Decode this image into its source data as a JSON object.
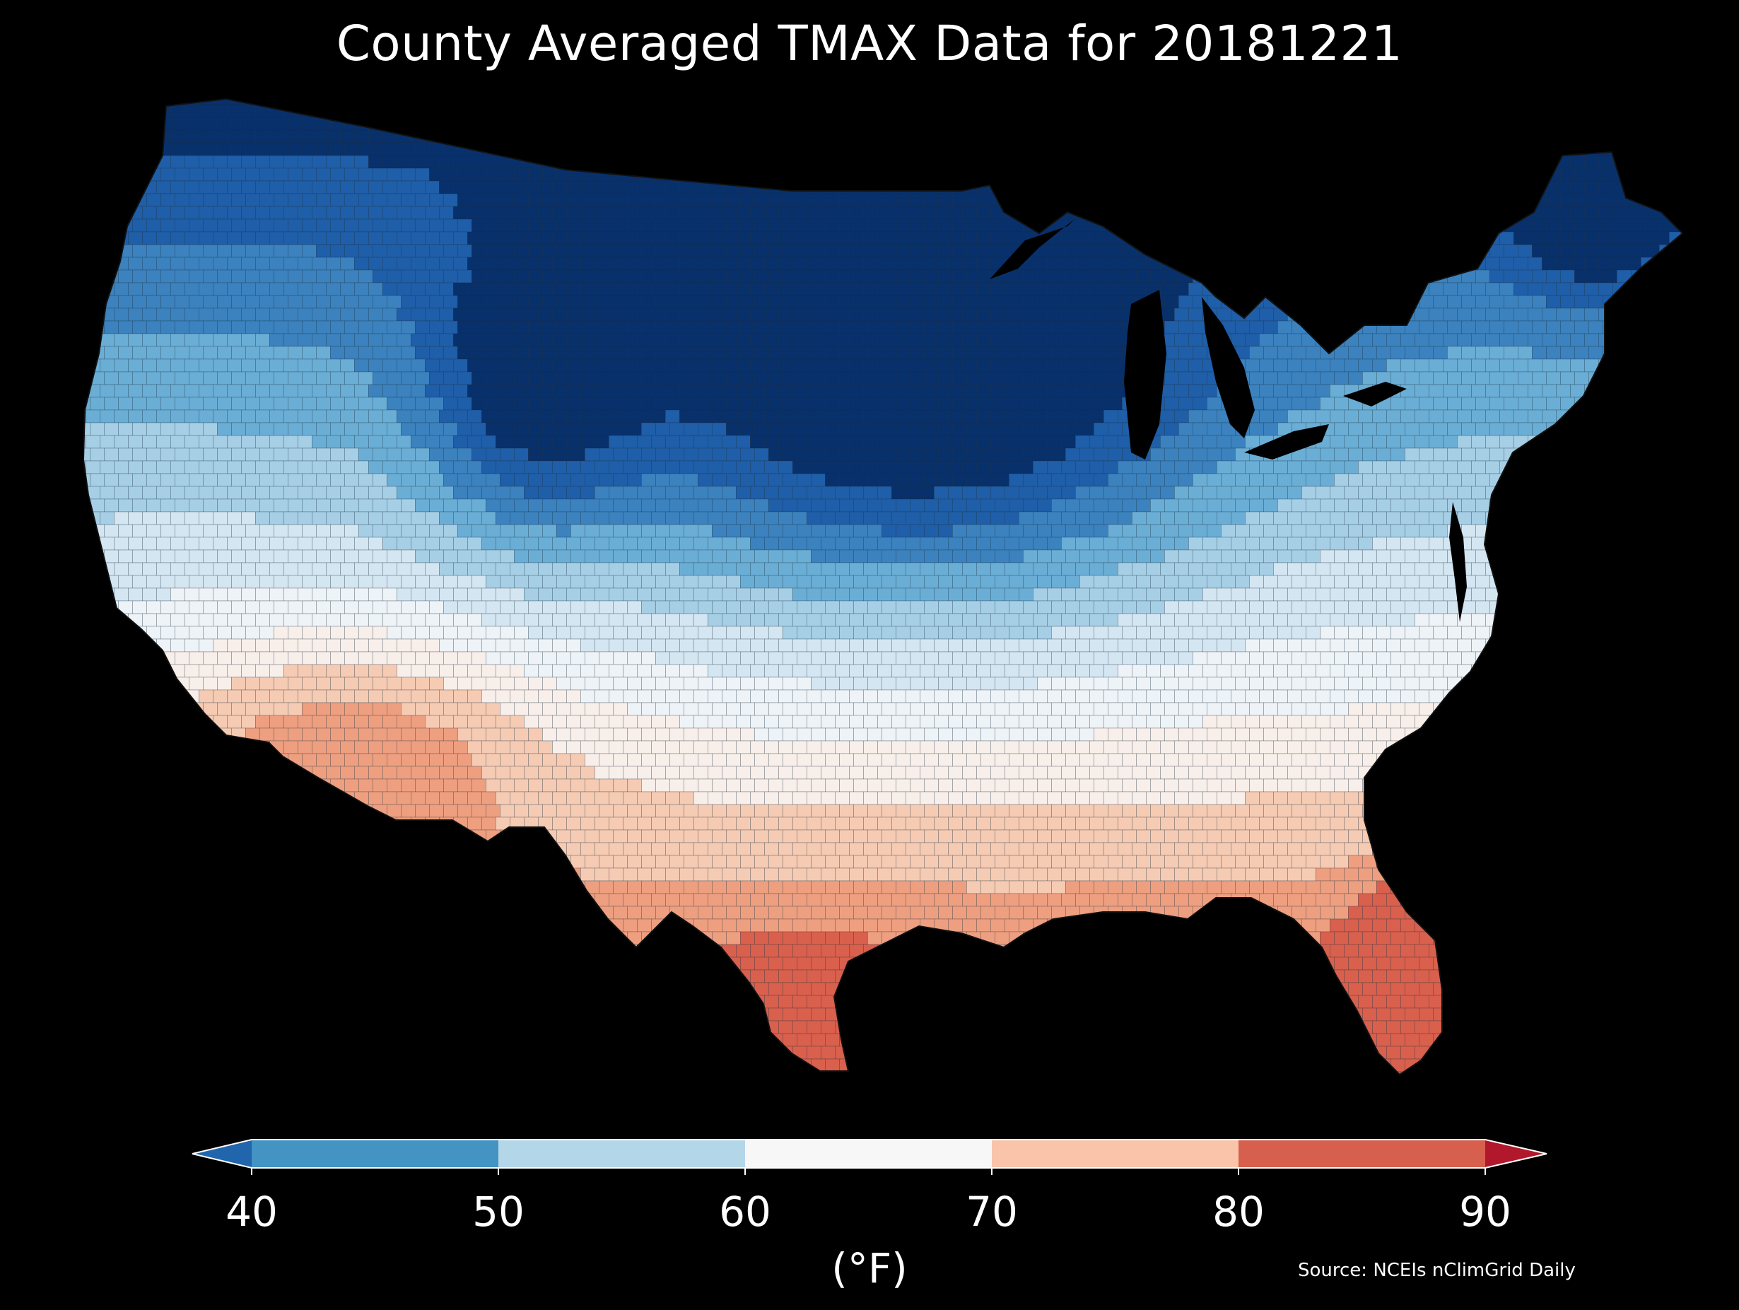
{
  "title": "County Averaged TMAX Data for 20181221",
  "colorbar": {
    "ticks": [
      "40",
      "50",
      "60",
      "70",
      "80",
      "90"
    ],
    "units": "(°F)",
    "colors": {
      "under": "#2166ac",
      "bins": [
        "#4393c3",
        "#b4d6e9",
        "#f7f7f7",
        "#f9c4a9",
        "#d6604d"
      ],
      "over": "#b2182b"
    }
  },
  "source": "Source: NCEIs nClimGrid Daily",
  "map": {
    "background": "#000000",
    "ramp": [
      "#08306b",
      "#1f5ea8",
      "#3b82bf",
      "#6aaed6",
      "#a6cfe6",
      "#d4e6f1",
      "#eef3f7",
      "#f8efea",
      "#f6cbb3",
      "#ee9f80",
      "#d9604d"
    ]
  }
}
